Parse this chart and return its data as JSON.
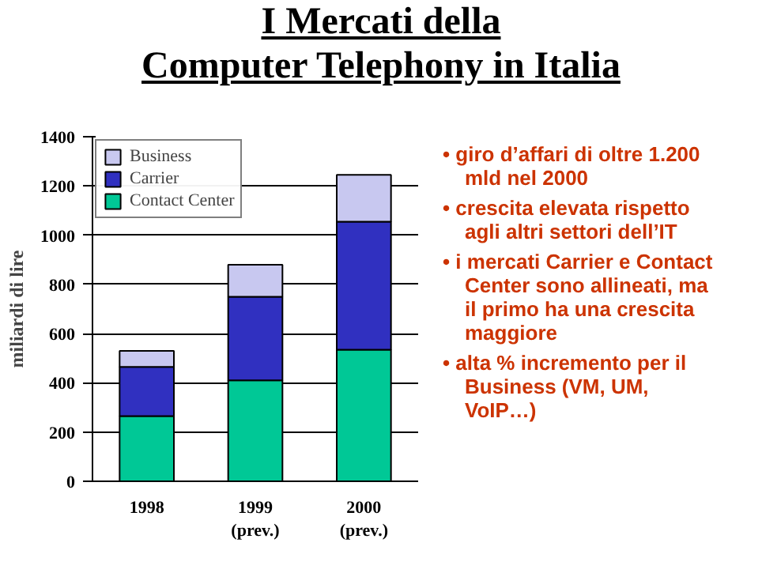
{
  "chart_data": {
    "type": "bar",
    "stacked": true,
    "title": "I Mercati della\nComputer Telephony in Italia",
    "ylabel": "miliardi di lire",
    "categories": [
      "1998",
      "1999\n(prev.)",
      "2000\n(prev.)"
    ],
    "series": [
      {
        "name": "Contact Center",
        "color": "#00c896",
        "values": [
          265,
          410,
          535
        ]
      },
      {
        "name": "Carrier",
        "color": "#3030c0",
        "values": [
          200,
          340,
          520
        ]
      },
      {
        "name": "Business",
        "color": "#c8c8f0",
        "values": [
          65,
          130,
          190
        ]
      }
    ],
    "ylim": [
      0,
      1400
    ],
    "yticks": [
      0,
      200,
      400,
      600,
      800,
      1000,
      1200,
      1400
    ],
    "grid": "y",
    "legend": "top left",
    "annotations": [
      "• giro d’affari di oltre 1.200 mld nel 2000",
      "• crescita elevata rispetto agli altri settori dell’IT",
      "• i mercati Carrier e Contact Center sono allineati, ma il primo ha una crescita maggiore",
      "• alta % incremento per il Business (VM, UM, VoIP…)"
    ]
  }
}
